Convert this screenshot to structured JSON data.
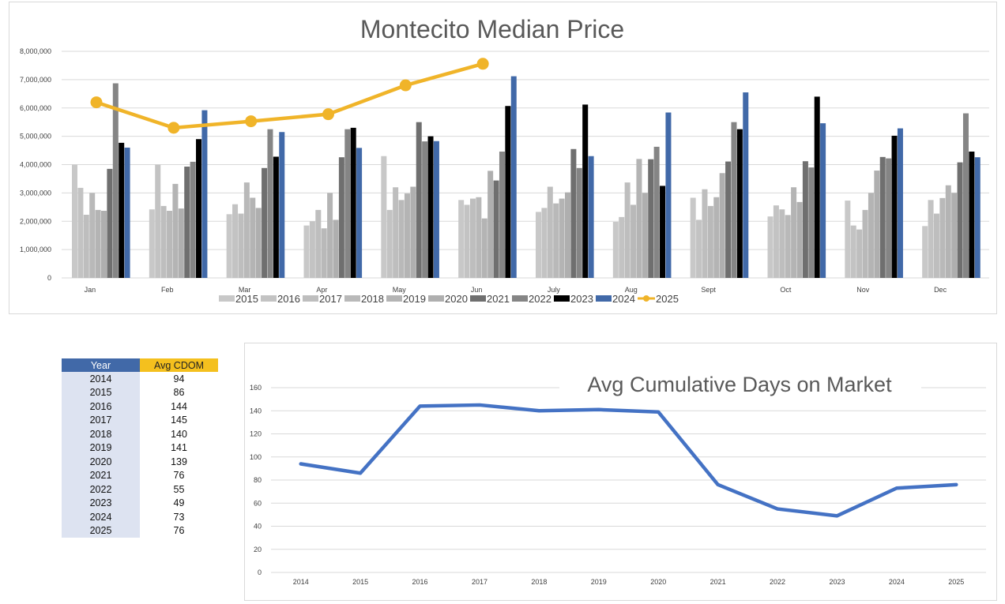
{
  "chart_data": [
    {
      "type": "bar",
      "title": "Montecito Median Price",
      "categories": [
        "Jan",
        "Feb",
        "Mar",
        "Apr",
        "May",
        "Jun",
        "July",
        "Aug",
        "Sept",
        "Oct",
        "Nov",
        "Dec"
      ],
      "y_ticks": [
        "0",
        "1,000,000",
        "2,000,000",
        "3,000,000",
        "4,000,000",
        "5,000,000",
        "6,000,000",
        "7,000,000",
        "8,000,000"
      ],
      "ylim": [
        0,
        8000000
      ],
      "grid": true,
      "legend_position": "bottom",
      "series": [
        {
          "name": "2015",
          "color": "#c8c8c8",
          "values": [
            4000000,
            2420000,
            2250000,
            1850000,
            4300000,
            2750000,
            2330000,
            1980000,
            2830000,
            2170000,
            2730000,
            1830000
          ]
        },
        {
          "name": "2016",
          "color": "#c3c3c3",
          "values": [
            3180000,
            4000000,
            2600000,
            2000000,
            2400000,
            2580000,
            2470000,
            2150000,
            2050000,
            2560000,
            1850000,
            2750000
          ]
        },
        {
          "name": "2017",
          "color": "#bebebe",
          "values": [
            2230000,
            2540000,
            2270000,
            2400000,
            3200000,
            2800000,
            3220000,
            3370000,
            3130000,
            2420000,
            1710000,
            2270000
          ]
        },
        {
          "name": "2018",
          "color": "#b9b9b9",
          "values": [
            3000000,
            2370000,
            3370000,
            1750000,
            2750000,
            2850000,
            2630000,
            2580000,
            2540000,
            2220000,
            2400000,
            2820000
          ]
        },
        {
          "name": "2019",
          "color": "#b4b4b4",
          "values": [
            2400000,
            3320000,
            2830000,
            3000000,
            2980000,
            2100000,
            2800000,
            4200000,
            2850000,
            3200000,
            3000000,
            3270000
          ]
        },
        {
          "name": "2020",
          "color": "#afafaf",
          "values": [
            2370000,
            2450000,
            2470000,
            2050000,
            3220000,
            3780000,
            3020000,
            3000000,
            3700000,
            2680000,
            3790000,
            3000000
          ]
        },
        {
          "name": "2021",
          "color": "#6f6f6f",
          "values": [
            3850000,
            3930000,
            3880000,
            4260000,
            5500000,
            3440000,
            4550000,
            4190000,
            4110000,
            4120000,
            4270000,
            4080000
          ]
        },
        {
          "name": "2022",
          "color": "#858585",
          "values": [
            6870000,
            4100000,
            5250000,
            5250000,
            4820000,
            4460000,
            3880000,
            4630000,
            5500000,
            3900000,
            4220000,
            5810000
          ]
        },
        {
          "name": "2023",
          "color": "#000000",
          "values": [
            4770000,
            4900000,
            4280000,
            5300000,
            5000000,
            6070000,
            6120000,
            3250000,
            5250000,
            6400000,
            5020000,
            4460000
          ]
        },
        {
          "name": "2024",
          "color": "#4169a8",
          "values": [
            4600000,
            5920000,
            5150000,
            4590000,
            4830000,
            7120000,
            4300000,
            5840000,
            6550000,
            5460000,
            5280000,
            4260000
          ]
        },
        {
          "name": "2025",
          "color": "#f0b429",
          "kind": "line",
          "values": [
            6200000,
            5300000,
            5530000,
            5780000,
            6800000,
            7560000,
            null,
            null,
            null,
            null,
            null,
            null
          ]
        }
      ]
    },
    {
      "type": "line",
      "title": "Avg Cumulative Days on Market",
      "x": [
        "2014",
        "2015",
        "2016",
        "2017",
        "2018",
        "2019",
        "2020",
        "2021",
        "2022",
        "2023",
        "2024",
        "2025"
      ],
      "y_ticks": [
        "0",
        "20",
        "40",
        "60",
        "80",
        "100",
        "120",
        "140",
        "160"
      ],
      "ylim": [
        0,
        160
      ],
      "grid": true,
      "series": [
        {
          "color": "#4472c4",
          "values": [
            94,
            86,
            144,
            145,
            140,
            141,
            139,
            76,
            55,
            49,
            73,
            76
          ]
        }
      ]
    }
  ],
  "table": {
    "headers": [
      "Year",
      "Avg CDOM"
    ],
    "rows": [
      [
        "2014",
        "94"
      ],
      [
        "2015",
        "86"
      ],
      [
        "2016",
        "144"
      ],
      [
        "2017",
        "145"
      ],
      [
        "2018",
        "140"
      ],
      [
        "2019",
        "141"
      ],
      [
        "2020",
        "139"
      ],
      [
        "2021",
        "76"
      ],
      [
        "2022",
        "55"
      ],
      [
        "2023",
        "49"
      ],
      [
        "2024",
        "73"
      ],
      [
        "2025",
        "76"
      ]
    ]
  }
}
